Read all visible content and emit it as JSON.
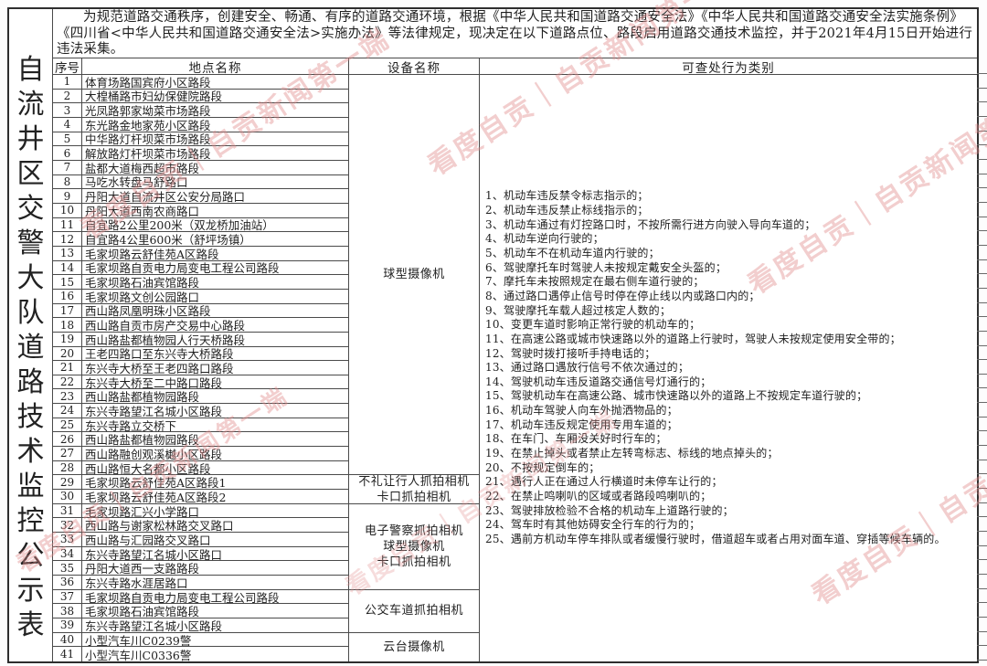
{
  "intro": "为规范道路交通秩序，创建安全、畅通、有序的道路交通环境，根据《中华人民共和国道路交通安全法》《中华人民共和国道路交通安全法实施条例》《四川省<中华人民共和国道路交通安全法>实施办法》等法律规定，现决定在以下道路点位、路段启用道路交通技术监控，并于2021年4月15日开始进行违法采集。",
  "side_title": "自流井区交警大队道路技术监控公示表",
  "watermark": "看度自贡｜自贡新闻第一端",
  "table": {
    "headers": {
      "index": "序号",
      "location": "地点名称",
      "device": "设备名称",
      "behavior": "可查处行为类别"
    },
    "rows": [
      {
        "no": "1",
        "location": "体育场路国宾府小区路段"
      },
      {
        "no": "2",
        "location": "大楻桶路市妇幼保健院路段"
      },
      {
        "no": "3",
        "location": "光凤路郭家坳菜市场路段"
      },
      {
        "no": "4",
        "location": "东光路金地家苑小区路段"
      },
      {
        "no": "5",
        "location": "中华路灯杆坝菜市场路段"
      },
      {
        "no": "6",
        "location": "解放路灯杆坝菜市场路段"
      },
      {
        "no": "7",
        "location": "盐都大道梅西超市路段"
      },
      {
        "no": "8",
        "location": "马吃水转盘马舒路口"
      },
      {
        "no": "9",
        "location": "丹阳大道自流井区公安分局路口"
      },
      {
        "no": "10",
        "location": "丹阳大道西南农商路口"
      },
      {
        "no": "11",
        "location": "自宜路2公里200米（双龙桥加油站）"
      },
      {
        "no": "12",
        "location": "自宜路4公里600米（舒坪场镇）"
      },
      {
        "no": "13",
        "location": "毛家坝路云舒佳苑A区路段"
      },
      {
        "no": "14",
        "location": "毛家坝路自贡电力局变电工程公司路段"
      },
      {
        "no": "15",
        "location": "毛家坝路石油宾馆路段"
      },
      {
        "no": "16",
        "location": "毛家坝路文创公园路口"
      },
      {
        "no": "17",
        "location": "西山路凤凰明珠小区路段"
      },
      {
        "no": "18",
        "location": "西山路自贡市房产交易中心路段"
      },
      {
        "no": "19",
        "location": "西山路盐都植物园人行天桥路段"
      },
      {
        "no": "20",
        "location": "王老四路口至东兴寺大桥路段"
      },
      {
        "no": "21",
        "location": "东兴寺大桥至王老四路口路段"
      },
      {
        "no": "22",
        "location": "东兴寺大桥至二中路口路段"
      },
      {
        "no": "23",
        "location": "西山路盐都植物园路段"
      },
      {
        "no": "24",
        "location": "东兴寺路望江名城小区路段"
      },
      {
        "no": "25",
        "location": "东兴寺路立交桥下"
      },
      {
        "no": "26",
        "location": "西山路盐都植物园路段"
      },
      {
        "no": "27",
        "location": "西山路融创观溪樾小区路段"
      },
      {
        "no": "28",
        "location": "西山路恒大名都小区路段"
      },
      {
        "no": "29",
        "location": "毛家坝路云舒佳苑A区路段1"
      },
      {
        "no": "30",
        "location": "毛家坝路云舒佳苑A区路段2"
      },
      {
        "no": "31",
        "location": "毛家坝路汇兴小学路口"
      },
      {
        "no": "32",
        "location": "西山路与谢家松林路交叉路口"
      },
      {
        "no": "33",
        "location": "西山路与汇园路交叉路口"
      },
      {
        "no": "34",
        "location": "东兴寺路望江名城小区路口"
      },
      {
        "no": "35",
        "location": "丹阳大道西一支路路段"
      },
      {
        "no": "36",
        "location": "东兴寺路水涯居路口"
      },
      {
        "no": "37",
        "location": "毛家坝路自贡电力局变电工程公司路段"
      },
      {
        "no": "38",
        "location": "毛家坝路石油宾馆路段"
      },
      {
        "no": "39",
        "location": "东兴寺路望江名城小区路段"
      },
      {
        "no": "40",
        "location": "小型汽车川C0239警"
      },
      {
        "no": "41",
        "location": "小型汽车川C0336警"
      }
    ],
    "device_groups": [
      {
        "start": 1,
        "end": 28,
        "lines": [
          "球型摄像机"
        ]
      },
      {
        "start": 29,
        "end": 30,
        "lines": [
          "不礼让行人抓拍相机",
          "卡口抓拍相机"
        ]
      },
      {
        "start": 31,
        "end": 36,
        "lines": [
          "电子警察抓拍相机",
          "球型摄像机",
          "卡口抓拍相机"
        ]
      },
      {
        "start": 37,
        "end": 39,
        "lines": [
          "公交车道抓拍相机"
        ]
      },
      {
        "start": 40,
        "end": 41,
        "lines": [
          "云台摄像机"
        ]
      }
    ],
    "behaviors": [
      "1、机动车违反禁令标志指示的；",
      "2、机动车违反禁止标线指示的；",
      "3、机动车通过有灯控路口时，不按所需行进方向驶入导向车道的；",
      "4、机动车逆向行驶的；",
      "5、机动车不在机动车道内行驶的；",
      "6、驾驶摩托车时驾驶人未按规定戴安全头盔的；",
      "7、摩托车未按照规定在最右侧车道行驶的；",
      "8、通过路口遇停止信号时停在停止线以内或路口内的；",
      "9、驾驶摩托车载人超过核定人数的；",
      "10、变更车道时影响正常行驶的机动车的；",
      "11、在高速公路或城市快速路以外的道路上行驶时，驾驶人未按规定使用安全带的；",
      "12、驾驶时拨打接听手持电话的；",
      "13、通过路口遇放行信号不依次通过的；",
      "14、驾驶机动车违反道路交通信号灯通行的；",
      "15、驾驶机动车在高速公路、城市快速路以外的道路上不按规定车道行驶的；",
      "16、机动车驾驶人向车外抛洒物品的；",
      "17、机动车违反规定使用专用车道的；",
      "18、在车门、车厢没关好时行车的；",
      "19、在禁止掉头或者禁止左转弯标志、标线的地点掉头的；",
      "20、不按规定倒车的；",
      "21、遇行人正在通过人行横道时未停车让行的；",
      "22、在禁止鸣喇叭的区域或者路段鸣喇叭的；",
      "23、驾驶排放检验不合格的机动车上道路行驶的；",
      "24、驾车时有其他妨碍安全行车的行为的；",
      "25、遇前方机动车停车排队或者缓慢行驶时，借道超车或者占用对面车道、穿插等候车辆的。"
    ]
  }
}
